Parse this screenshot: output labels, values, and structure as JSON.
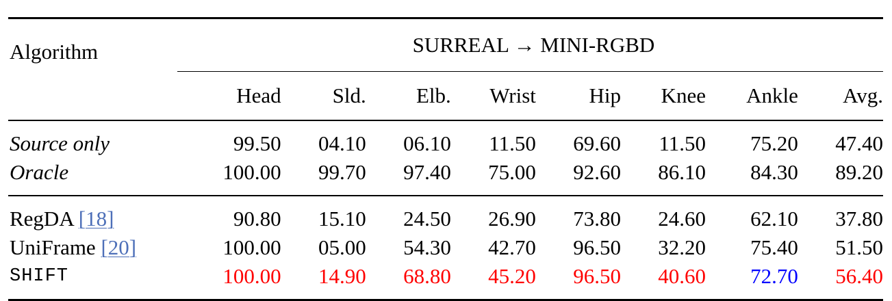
{
  "header": {
    "algorithm": "Algorithm",
    "dataset": "SURREAL → MINI-RGBD",
    "columns": [
      "Head",
      "Sld.",
      "Elb.",
      "Wrist",
      "Hip",
      "Knee",
      "Ankle",
      "Avg."
    ]
  },
  "rows": [
    {
      "name": "Source only",
      "ref": "",
      "values": [
        "99.50",
        "04.10",
        "06.10",
        "11.50",
        "69.60",
        "11.50",
        "75.20",
        "47.40"
      ]
    },
    {
      "name": "Oracle",
      "ref": "",
      "values": [
        "100.00",
        "99.70",
        "97.40",
        "75.00",
        "92.60",
        "86.10",
        "84.30",
        "89.20"
      ]
    },
    {
      "name": "RegDA",
      "ref": "[18]",
      "values": [
        "90.80",
        "15.10",
        "24.50",
        "26.90",
        "73.80",
        "24.60",
        "62.10",
        "37.80"
      ]
    },
    {
      "name": "UniFrame",
      "ref": "[20]",
      "values": [
        "100.00",
        "05.00",
        "54.30",
        "42.70",
        "96.50",
        "32.20",
        "75.40",
        "51.50"
      ]
    },
    {
      "name": "SHIFT",
      "ref": "",
      "values": [
        "100.00",
        "14.90",
        "68.80",
        "45.20",
        "96.50",
        "40.60",
        "72.70",
        "56.40"
      ]
    }
  ],
  "colors": {
    "best": "#ff0000",
    "second": "#0000ff",
    "citation": "#4d6fb8"
  }
}
